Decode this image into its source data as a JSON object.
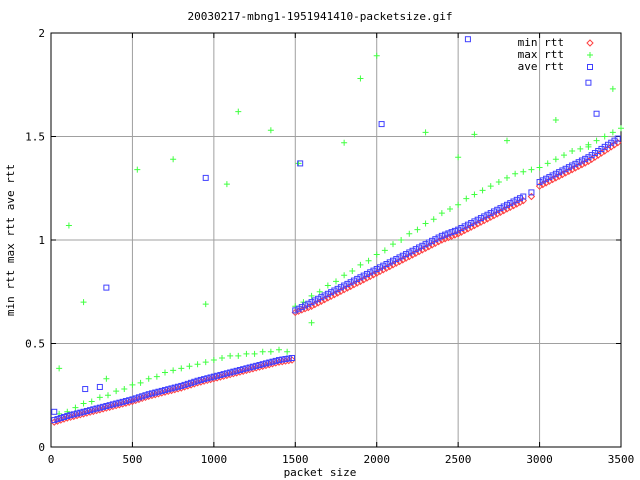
{
  "chart_data": {
    "type": "scatter",
    "title": "20030217-mbng1-1951941410-packetsize.gif",
    "xlabel": "packet size",
    "ylabel": "min rtt max rtt ave rtt",
    "xlim": [
      0,
      3500
    ],
    "ylim": [
      0,
      2
    ],
    "x_ticks": [
      0,
      500,
      1000,
      1500,
      2000,
      2500,
      3000,
      3500
    ],
    "y_ticks": [
      0,
      0.5,
      1,
      1.5,
      2
    ],
    "x_tick_labels": [
      "0",
      "500",
      "1000",
      "1500",
      "2000",
      "2500",
      "3000",
      "3500"
    ],
    "y_tick_labels": [
      "0",
      "0.5",
      "1",
      "1.5",
      "2"
    ],
    "grid": true,
    "legend_position": "top-right",
    "series": [
      {
        "name": "min rtt",
        "marker": "diamond",
        "color": "#ff4040",
        "x": [
          20,
          100,
          200,
          300,
          400,
          500,
          600,
          700,
          800,
          900,
          1000,
          1100,
          1200,
          1300,
          1400,
          1480,
          1500,
          1600,
          1700,
          1800,
          1900,
          2000,
          2100,
          2200,
          2300,
          2400,
          2500,
          2600,
          2700,
          2800,
          2900,
          2950,
          3000,
          3100,
          3200,
          3300,
          3400,
          3480
        ],
        "y": [
          0.12,
          0.14,
          0.16,
          0.18,
          0.2,
          0.22,
          0.245,
          0.265,
          0.285,
          0.31,
          0.33,
          0.35,
          0.37,
          0.39,
          0.41,
          0.42,
          0.65,
          0.68,
          0.72,
          0.76,
          0.8,
          0.84,
          0.88,
          0.92,
          0.96,
          1.0,
          1.03,
          1.07,
          1.11,
          1.15,
          1.19,
          1.21,
          1.26,
          1.3,
          1.34,
          1.38,
          1.43,
          1.47
        ]
      },
      {
        "name": "max rtt",
        "marker": "plus",
        "color": "#40ff40",
        "x": [
          50,
          100,
          150,
          200,
          250,
          300,
          350,
          400,
          450,
          500,
          550,
          600,
          650,
          700,
          750,
          800,
          850,
          900,
          950,
          1000,
          1050,
          1100,
          1150,
          1200,
          1250,
          1300,
          1350,
          1400,
          1450,
          1500,
          1550,
          1600,
          1650,
          1700,
          1750,
          1800,
          1850,
          1900,
          1950,
          2000,
          2050,
          2100,
          2150,
          2200,
          2250,
          2300,
          2350,
          2400,
          2450,
          2500,
          2550,
          2600,
          2650,
          2700,
          2750,
          2800,
          2850,
          2900,
          2950,
          3000,
          3050,
          3100,
          3150,
          3200,
          3250,
          3300,
          3350,
          3400,
          3450,
          3500
        ],
        "y": [
          0.16,
          0.17,
          0.19,
          0.21,
          0.22,
          0.24,
          0.25,
          0.27,
          0.28,
          0.3,
          0.31,
          0.33,
          0.34,
          0.36,
          0.37,
          0.38,
          0.39,
          0.4,
          0.41,
          0.42,
          0.43,
          0.44,
          0.44,
          0.45,
          0.45,
          0.46,
          0.46,
          0.47,
          0.46,
          0.68,
          0.7,
          0.73,
          0.75,
          0.78,
          0.8,
          0.83,
          0.85,
          0.88,
          0.9,
          0.93,
          0.95,
          0.98,
          1.0,
          1.03,
          1.05,
          1.08,
          1.1,
          1.13,
          1.15,
          1.17,
          1.2,
          1.22,
          1.24,
          1.26,
          1.28,
          1.3,
          1.32,
          1.33,
          1.34,
          1.35,
          1.37,
          1.39,
          1.41,
          1.43,
          1.44,
          1.46,
          1.48,
          1.5,
          1.52,
          1.54
        ],
        "outliers_x": [
          50,
          110,
          200,
          340,
          530,
          750,
          950,
          1080,
          1150,
          1350,
          1520,
          1600,
          1800,
          1900,
          2000,
          2300,
          2500,
          2600,
          2800,
          3100,
          3300,
          3450
        ],
        "outliers_y": [
          0.38,
          1.07,
          0.7,
          0.33,
          1.34,
          1.39,
          0.69,
          1.27,
          1.62,
          1.53,
          1.37,
          0.6,
          1.47,
          1.78,
          1.89,
          1.52,
          1.4,
          1.51,
          1.48,
          1.58,
          1.45,
          1.73
        ]
      },
      {
        "name": "ave rtt",
        "marker": "square",
        "color": "#4040ff",
        "x": [
          20,
          100,
          200,
          300,
          400,
          500,
          600,
          700,
          800,
          900,
          1000,
          1100,
          1200,
          1300,
          1400,
          1480,
          1500,
          1600,
          1700,
          1800,
          1900,
          2000,
          2100,
          2200,
          2300,
          2400,
          2500,
          2600,
          2700,
          2800,
          2900,
          2950,
          3000,
          3100,
          3200,
          3300,
          3400,
          3480
        ],
        "y": [
          0.13,
          0.15,
          0.17,
          0.19,
          0.21,
          0.23,
          0.255,
          0.275,
          0.295,
          0.32,
          0.34,
          0.36,
          0.38,
          0.4,
          0.42,
          0.43,
          0.66,
          0.7,
          0.74,
          0.78,
          0.82,
          0.86,
          0.9,
          0.94,
          0.98,
          1.02,
          1.05,
          1.09,
          1.13,
          1.17,
          1.21,
          1.23,
          1.28,
          1.32,
          1.36,
          1.4,
          1.45,
          1.49
        ],
        "outliers_x": [
          20,
          210,
          300,
          340,
          950,
          1530,
          2030,
          2560,
          3300,
          3350
        ],
        "outliers_y": [
          0.17,
          0.28,
          0.29,
          0.77,
          1.3,
          1.37,
          1.56,
          1.97,
          1.76,
          1.61
        ]
      }
    ]
  }
}
